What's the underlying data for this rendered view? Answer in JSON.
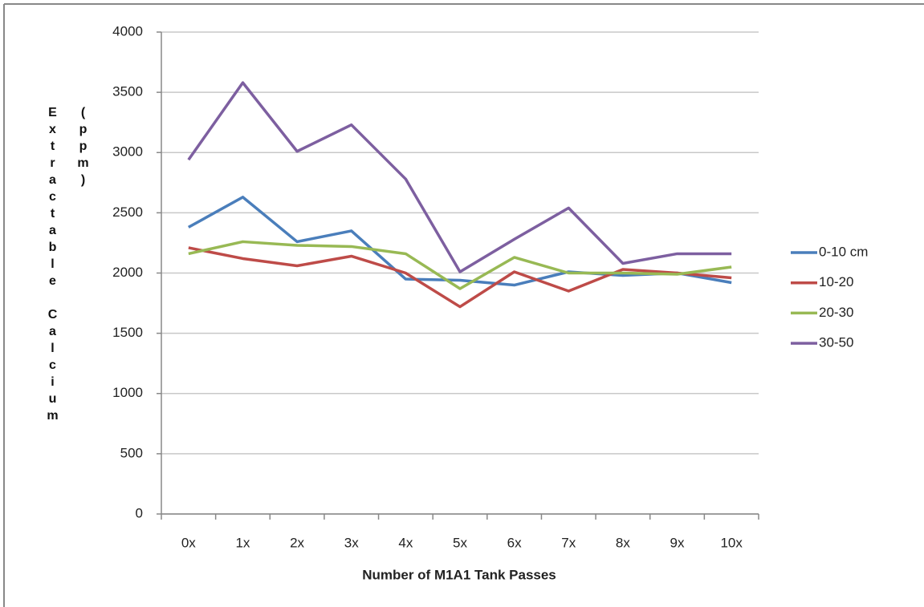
{
  "chart_data": {
    "type": "line",
    "xlabel": "Number of M1A1 Tank Passes",
    "ylabel": "Extractable Calcium (ppm)",
    "categories": [
      "0x",
      "1x",
      "2x",
      "3x",
      "4x",
      "5x",
      "6x",
      "7x",
      "8x",
      "9x",
      "10x"
    ],
    "series": [
      {
        "name": "0-10 cm",
        "color": "#4a7ebb",
        "values": [
          2380,
          2630,
          2260,
          2350,
          1950,
          1940,
          1900,
          2010,
          1980,
          2000,
          1920
        ]
      },
      {
        "name": "10-20",
        "color": "#be4b48",
        "values": [
          2210,
          2120,
          2060,
          2140,
          2000,
          1720,
          2010,
          1850,
          2030,
          2000,
          1960
        ]
      },
      {
        "name": "20-30",
        "color": "#98b954",
        "values": [
          2160,
          2260,
          2230,
          2220,
          2160,
          1870,
          2130,
          2000,
          2000,
          1990,
          2050
        ]
      },
      {
        "name": "30-50",
        "color": "#7d5fa0",
        "values": [
          2940,
          3580,
          3010,
          3230,
          2780,
          2010,
          2280,
          2540,
          2080,
          2160,
          2160
        ]
      }
    ],
    "ylim": [
      0,
      4000
    ],
    "yticks": [
      0,
      500,
      1000,
      1500,
      2000,
      2500,
      3000,
      3500,
      4000
    ],
    "grid": true,
    "legend": "right"
  }
}
